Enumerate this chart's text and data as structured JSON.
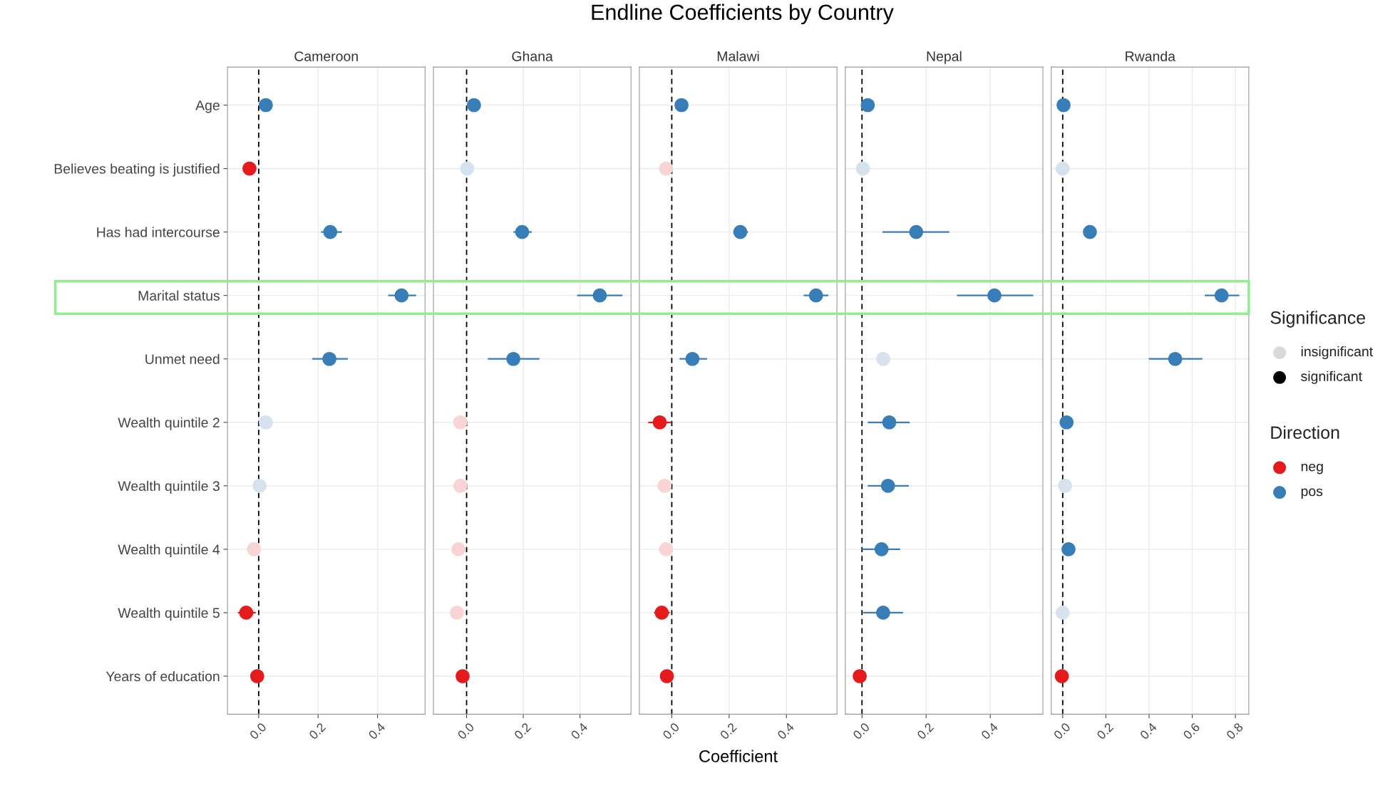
{
  "chart_data": [
    {
      "type": "scatter",
      "orientation": "horizontal",
      "title": "Cameroon",
      "categories": [
        "Age",
        "Believes beating is justified",
        "Has had intercourse",
        "Marital status",
        "Unmet need",
        "Wealth quintile 2",
        "Wealth quintile 3",
        "Wealth quintile 4",
        "Wealth quintile 5",
        "Years of education"
      ],
      "xlim": [
        -0.105,
        0.56
      ],
      "xticks": [
        {
          "value": 0,
          "label": "0.0"
        },
        {
          "value": 0.2,
          "label": "0.2"
        },
        {
          "value": 0.4,
          "label": "0.4"
        }
      ],
      "grid": true,
      "marker": "circle",
      "ref_lines": [
        {
          "axis": "x",
          "value": 0,
          "line_style": "dashed",
          "color": "#000000"
        }
      ],
      "series": [
        {
          "values": [
            null,
            -0.031,
            null,
            null,
            null,
            null,
            null,
            -0.016,
            -0.042,
            -0.005
          ],
          "colors": [
            null,
            "#e41a1c",
            null,
            null,
            null,
            null,
            null,
            "#f8d4d4",
            "#e41a1c",
            "#e41a1c"
          ],
          "errors": [
            null,
            null,
            null,
            null,
            null,
            null,
            null,
            null,
            [
              -0.07,
              -0.01
            ],
            null
          ]
        },
        {
          "values": [
            0.024,
            null,
            0.241,
            0.481,
            0.238,
            0.024,
            0.003,
            null,
            null,
            null
          ],
          "colors": [
            "#377eb8",
            null,
            "#377eb8",
            "#377eb8",
            "#377eb8",
            "#d6e2ee",
            "#d6e2ee",
            null,
            null,
            null
          ],
          "errors": [
            null,
            null,
            [
              0.21,
              0.28
            ],
            [
              0.436,
              0.53
            ],
            [
              0.18,
              0.3
            ],
            null,
            null,
            null,
            null,
            null
          ]
        }
      ]
    },
    {
      "type": "scatter",
      "orientation": "horizontal",
      "title": "Ghana",
      "tick_labels": "x",
      "xlim": [
        -0.117,
        0.58
      ],
      "xticks": [
        {
          "value": 0,
          "label": "0.0"
        },
        {
          "value": 0.2,
          "label": "0.2"
        },
        {
          "value": 0.4,
          "label": "0.4"
        }
      ],
      "grid": true,
      "marker": "circle",
      "ref_lines": [
        {
          "axis": "x",
          "value": 0,
          "line_style": "dashed",
          "color": "#000000"
        }
      ],
      "series": [
        {
          "values": [
            null,
            null,
            null,
            null,
            null,
            -0.022,
            -0.022,
            -0.029,
            -0.034,
            -0.014
          ],
          "colors": [
            null,
            null,
            null,
            null,
            null,
            "#f8d4d4",
            "#f8d4d4",
            "#f8d4d4",
            "#f8d4d4",
            "#e41a1c"
          ]
        },
        {
          "values": [
            0.026,
            0.002,
            0.196,
            0.47,
            0.165,
            null,
            null,
            null,
            null,
            null
          ],
          "colors": [
            "#377eb8",
            "#d6e2ee",
            "#377eb8",
            "#377eb8",
            "#377eb8",
            null,
            null,
            null,
            null,
            null
          ],
          "errors": [
            null,
            null,
            [
              0.165,
              0.23
            ],
            [
              0.39,
              0.55
            ],
            [
              0.075,
              0.257
            ],
            null,
            null,
            null,
            null,
            null
          ]
        }
      ]
    },
    {
      "type": "scatter",
      "orientation": "horizontal",
      "title": "Malawi",
      "xlabel": "Coefficient",
      "tick_labels": "x",
      "xlim": [
        -0.113,
        0.576
      ],
      "xticks": [
        {
          "value": 0,
          "label": "0.0"
        },
        {
          "value": 0.2,
          "label": "0.2"
        },
        {
          "value": 0.4,
          "label": "0.4"
        }
      ],
      "grid": true,
      "marker": "circle",
      "ref_lines": [
        {
          "axis": "x",
          "value": 0,
          "line_style": "dashed",
          "color": "#000000"
        }
      ],
      "series": [
        {
          "values": [
            null,
            -0.02,
            null,
            null,
            null,
            -0.042,
            -0.025,
            -0.02,
            -0.035,
            -0.017
          ],
          "colors": [
            null,
            "#f8d4d4",
            null,
            null,
            null,
            "#e41a1c",
            "#f8d4d4",
            "#f8d4d4",
            "#e41a1c",
            "#e41a1c"
          ],
          "errors": [
            null,
            null,
            null,
            null,
            null,
            [
              -0.082,
              -0.003
            ],
            null,
            null,
            [
              -0.062,
              -0.007
            ],
            null
          ]
        },
        {
          "values": [
            0.034,
            null,
            0.239,
            0.503,
            0.072,
            null,
            null,
            null,
            null,
            null
          ],
          "colors": [
            "#377eb8",
            null,
            "#377eb8",
            "#377eb8",
            "#377eb8",
            null,
            null,
            null,
            null,
            null
          ],
          "errors": [
            null,
            null,
            [
              0.215,
              0.266
            ],
            [
              0.46,
              0.546
            ],
            [
              0.027,
              0.123
            ],
            null,
            null,
            null,
            null,
            null
          ]
        }
      ]
    },
    {
      "type": "scatter",
      "orientation": "horizontal",
      "title": "Nepal",
      "tick_labels": "x",
      "xlim": [
        -0.052,
        0.564
      ],
      "xticks": [
        {
          "value": 0,
          "label": "0.0"
        },
        {
          "value": 0.2,
          "label": "0.2"
        },
        {
          "value": 0.4,
          "label": "0.4"
        }
      ],
      "grid": true,
      "marker": "circle",
      "ref_lines": [
        {
          "axis": "x",
          "value": 0,
          "line_style": "dashed",
          "color": "#000000"
        }
      ],
      "series": [
        {
          "values": [
            null,
            null,
            null,
            null,
            null,
            null,
            null,
            null,
            null,
            -0.007
          ],
          "colors": [
            null,
            null,
            null,
            null,
            null,
            null,
            null,
            null,
            null,
            "#e41a1c"
          ]
        },
        {
          "values": [
            0.018,
            0.003,
            0.169,
            0.413,
            0.066,
            0.085,
            0.081,
            0.061,
            0.066,
            null
          ],
          "colors": [
            "#377eb8",
            "#d6e2ee",
            "#377eb8",
            "#377eb8",
            "#d6e2ee",
            "#377eb8",
            "#377eb8",
            "#377eb8",
            "#377eb8",
            null
          ],
          "errors": [
            null,
            null,
            [
              0.064,
              0.272
            ],
            [
              0.296,
              0.534
            ],
            null,
            [
              0.018,
              0.149
            ],
            [
              0.018,
              0.146
            ],
            [
              0.0,
              0.119
            ],
            [
              0.003,
              0.128
            ],
            null
          ]
        }
      ]
    },
    {
      "type": "scatter",
      "orientation": "horizontal",
      "title": "Rwanda",
      "tick_labels": "x",
      "xlim": [
        -0.053,
        0.862
      ],
      "xticks": [
        {
          "value": 0,
          "label": "0.0"
        },
        {
          "value": 0.2,
          "label": "0.2"
        },
        {
          "value": 0.4,
          "label": "0.4"
        },
        {
          "value": 0.6,
          "label": "0.6"
        },
        {
          "value": 0.8,
          "label": "0.8"
        }
      ],
      "grid": true,
      "marker": "circle",
      "ref_lines": [
        {
          "axis": "x",
          "value": 0,
          "line_style": "dashed",
          "color": "#000000"
        }
      ],
      "series": [
        {
          "values": [
            null,
            null,
            null,
            null,
            null,
            null,
            null,
            null,
            null,
            -0.004
          ],
          "colors": [
            null,
            null,
            null,
            null,
            null,
            null,
            null,
            null,
            null,
            "#e41a1c"
          ]
        },
        {
          "values": [
            0.004,
            0.0,
            0.126,
            0.736,
            0.521,
            0.018,
            0.011,
            0.027,
            0.0,
            null
          ],
          "colors": [
            "#377eb8",
            "#d6e2ee",
            "#377eb8",
            "#377eb8",
            "#377eb8",
            "#377eb8",
            "#d6e2ee",
            "#377eb8",
            "#d6e2ee",
            null
          ],
          "errors": [
            null,
            null,
            null,
            [
              0.658,
              0.818
            ],
            [
              0.399,
              0.647
            ],
            null,
            null,
            null,
            null,
            null
          ]
        }
      ]
    },
    {
      "type": "other",
      "title": "Endline Coefficients by Country",
      "legend": "right",
      "annotations": [
        "Significance",
        "Direction"
      ],
      "series": [
        {
          "name": "insignificant",
          "color": "#d9d9d9"
        },
        {
          "name": "significant",
          "color": "#000000"
        },
        {
          "name": "neg",
          "color": "#e41a1c"
        },
        {
          "name": "pos",
          "color": "#377eb8"
        }
      ]
    }
  ]
}
